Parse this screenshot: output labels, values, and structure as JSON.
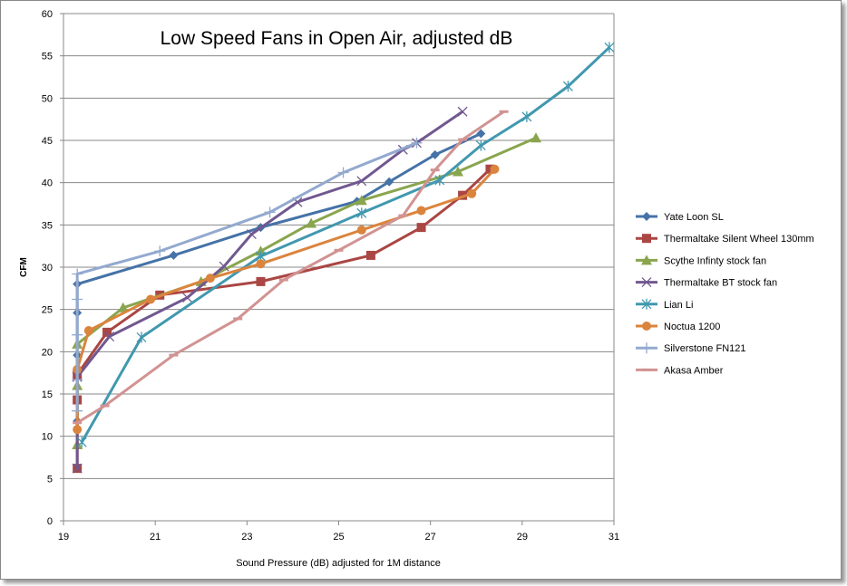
{
  "chart_data": {
    "type": "line",
    "title": "Low Speed Fans in Open Air, adjusted dB",
    "xlabel": "Sound Pressure (dB) adjusted for 1M distance",
    "ylabel": "CFM",
    "xlim": [
      19,
      31
    ],
    "ylim": [
      0,
      60
    ],
    "xticks": [
      19,
      21,
      23,
      25,
      27,
      29,
      31
    ],
    "yticks": [
      0,
      5,
      10,
      15,
      20,
      25,
      30,
      35,
      40,
      45,
      50,
      55,
      60
    ],
    "grid": "horizontal",
    "legend": "right",
    "series": [
      {
        "name": "Yate Loon SL",
        "color": "#4572A7",
        "marker": "diamond",
        "x": [
          19.3,
          19.3,
          19.3,
          19.3,
          21.4,
          23.3,
          25.4,
          26.1,
          27.1,
          28.1
        ],
        "y": [
          11.8,
          19.6,
          24.6,
          28.0,
          31.4,
          34.7,
          37.8,
          40.1,
          43.3,
          45.8
        ]
      },
      {
        "name": "Thermaltake Silent Wheel 130mm",
        "color": "#AA4643",
        "marker": "square",
        "x": [
          19.3,
          19.3,
          19.3,
          19.95,
          21.1,
          23.3,
          25.7,
          26.8,
          27.7,
          28.3
        ],
        "y": [
          6.2,
          14.3,
          17.3,
          22.3,
          26.7,
          28.3,
          31.4,
          34.7,
          38.5,
          41.6
        ]
      },
      {
        "name": "Scythe Infinty stock fan",
        "color": "#89A54E",
        "marker": "triangle",
        "x": [
          19.3,
          19.3,
          19.3,
          20.3,
          22.0,
          23.3,
          24.4,
          25.5,
          27.6,
          29.3
        ],
        "y": [
          9.0,
          16.0,
          20.9,
          25.2,
          28.3,
          31.9,
          35.2,
          37.9,
          41.3,
          45.3
        ]
      },
      {
        "name": "Thermaltake BT stock fan",
        "color": "#71588F",
        "marker": "x",
        "x": [
          19.3,
          19.3,
          20.0,
          21.7,
          22.5,
          23.1,
          24.1,
          25.5,
          26.4,
          26.7,
          27.7
        ],
        "y": [
          6.2,
          17.0,
          21.8,
          26.4,
          30.1,
          33.9,
          37.7,
          40.2,
          43.9,
          44.7,
          48.4
        ]
      },
      {
        "name": "Lian Li",
        "color": "#4198AF",
        "marker": "asterisk",
        "x": [
          19.4,
          20.7,
          23.3,
          25.5,
          27.2,
          28.1,
          29.1,
          30.0,
          30.9
        ],
        "y": [
          9.3,
          21.7,
          31.3,
          36.4,
          40.3,
          44.4,
          47.8,
          51.4,
          56.0
        ]
      },
      {
        "name": "Noctua 1200",
        "color": "#DB843D",
        "marker": "circle",
        "x": [
          19.3,
          19.3,
          19.55,
          20.9,
          22.2,
          23.3,
          25.5,
          26.8,
          27.9,
          28.4
        ],
        "y": [
          10.8,
          17.9,
          22.5,
          26.2,
          28.7,
          30.4,
          34.4,
          36.7,
          38.7,
          41.6
        ]
      },
      {
        "name": "Silverstone FN121",
        "color": "#93A9CF",
        "marker": "plus",
        "x": [
          19.3,
          19.3,
          19.3,
          19.3,
          19.3,
          21.1,
          23.5,
          25.1,
          26.7
        ],
        "y": [
          13.0,
          16.7,
          22.0,
          26.2,
          29.2,
          31.9,
          36.5,
          41.2,
          44.7
        ]
      },
      {
        "name": "Akasa Amber",
        "color": "#D19392",
        "marker": "dash",
        "x": [
          19.3,
          19.9,
          21.4,
          22.8,
          23.8,
          25.0,
          26.4,
          27.1,
          27.7,
          28.6
        ],
        "y": [
          11.6,
          13.6,
          19.6,
          23.9,
          28.5,
          32.0,
          36.1,
          41.5,
          45.1,
          48.4
        ]
      }
    ]
  }
}
